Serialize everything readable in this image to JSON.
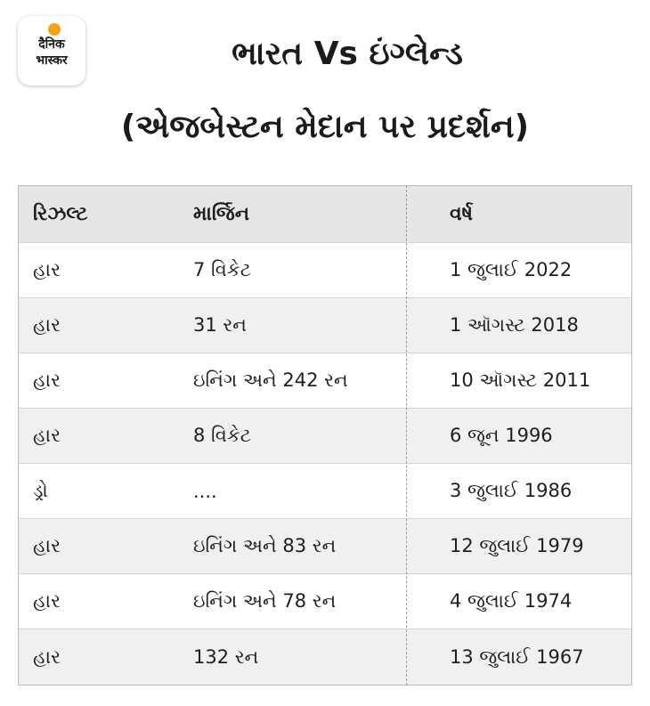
{
  "logo": {
    "line1": "दैनिक",
    "line2": "भास्कर"
  },
  "title": {
    "line1": "ભારત Vs ઇંગ્લેન્ડ",
    "line2": "(એજબેસ્ટન મેદાન પર પ્રદર્શન)"
  },
  "table": {
    "headers": [
      "રિઝલ્ટ",
      "માર્જિન",
      "વર્ષ"
    ],
    "rows": [
      [
        "હાર",
        "7 વિકેટ",
        "1 જુલાઈ 2022"
      ],
      [
        "હાર",
        "31 રન",
        "1 ઑગસ્ટ 2018"
      ],
      [
        "હાર",
        "ઇનિંગ અને 242 રન",
        "10 ઑગસ્ટ 2011"
      ],
      [
        "હાર",
        "8 વિકેટ",
        "6 જૂન 1996"
      ],
      [
        "ડ્રો",
        "....",
        "3 જુલાઈ 1986"
      ],
      [
        "હાર",
        "ઇનિંગ અને 83 રન",
        "12 જુલાઈ 1979"
      ],
      [
        "હાર",
        "ઇનિંગ અને 78 રન",
        "4 જુલાઈ 1974"
      ],
      [
        "હાર",
        "132 રન",
        "13 જુલાઈ 1967"
      ]
    ]
  },
  "colors": {
    "logo_accent": "#f3a21c",
    "header_bg": "#e6e6e6",
    "alt_row_bg": "#f0f0f0"
  }
}
